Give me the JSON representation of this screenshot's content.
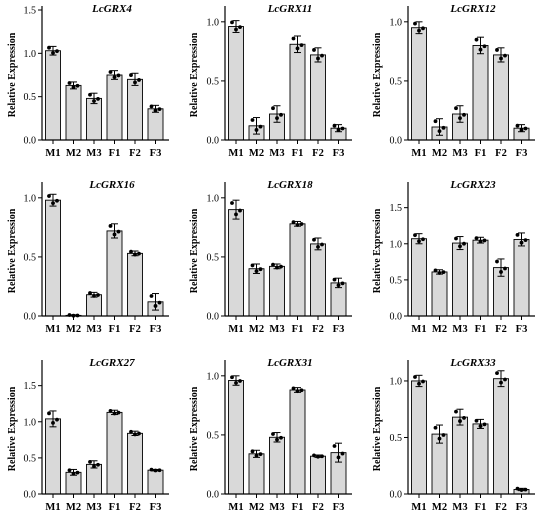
{
  "figure": {
    "ylabel": "Relative Expression",
    "categories": [
      "M1",
      "M2",
      "M3",
      "F1",
      "F2",
      "F3"
    ],
    "bar_color": "#d9d9d9",
    "edge_color": "#000000",
    "point_color": "#000000"
  },
  "chart_data": [
    {
      "type": "bar",
      "title": "LcGRX4",
      "categories": [
        "M1",
        "M2",
        "M3",
        "F1",
        "F2",
        "F3"
      ],
      "values": [
        1.03,
        0.63,
        0.48,
        0.75,
        0.7,
        0.36
      ],
      "errors": [
        0.05,
        0.04,
        0.06,
        0.05,
        0.07,
        0.04
      ],
      "ylim": [
        0,
        1.5
      ],
      "yticks": [
        0,
        0.5,
        1.0,
        1.5
      ],
      "ytick_labels": [
        "0.0",
        "0.5",
        "1.0",
        "1.5"
      ],
      "ylabel": "Relative Expression"
    },
    {
      "type": "bar",
      "title": "LcGRX11",
      "categories": [
        "M1",
        "M2",
        "M3",
        "F1",
        "F2",
        "F3"
      ],
      "values": [
        0.96,
        0.12,
        0.22,
        0.81,
        0.72,
        0.1
      ],
      "errors": [
        0.05,
        0.07,
        0.07,
        0.07,
        0.06,
        0.03
      ],
      "ylim": [
        0,
        1.1
      ],
      "yticks": [
        0,
        0.5,
        1.0
      ],
      "ytick_labels": [
        "0.0",
        "0.5",
        "1.0"
      ],
      "ylabel": "Relative Expression"
    },
    {
      "type": "bar",
      "title": "LcGRX12",
      "categories": [
        "M1",
        "M2",
        "M3",
        "F1",
        "F2",
        "F3"
      ],
      "values": [
        0.95,
        0.11,
        0.22,
        0.8,
        0.72,
        0.1
      ],
      "errors": [
        0.05,
        0.07,
        0.07,
        0.07,
        0.06,
        0.03
      ],
      "ylim": [
        0,
        1.1
      ],
      "yticks": [
        0,
        0.5,
        1.0
      ],
      "ytick_labels": [
        "0.0",
        "0.5",
        "1.0"
      ],
      "ylabel": "Relative Expression"
    },
    {
      "type": "bar",
      "title": "LcGRX16",
      "categories": [
        "M1",
        "M2",
        "M3",
        "F1",
        "F2",
        "F3"
      ],
      "values": [
        0.98,
        0.005,
        0.18,
        0.72,
        0.53,
        0.12
      ],
      "errors": [
        0.05,
        0.005,
        0.02,
        0.06,
        0.02,
        0.07
      ],
      "ylim": [
        0,
        1.1
      ],
      "yticks": [
        0,
        0.5,
        1.0
      ],
      "ytick_labels": [
        "0.0",
        "0.5",
        "1.0"
      ],
      "ylabel": "Relative Expression"
    },
    {
      "type": "bar",
      "title": "LcGRX18",
      "categories": [
        "M1",
        "M2",
        "M3",
        "F1",
        "F2",
        "F3"
      ],
      "values": [
        0.9,
        0.4,
        0.42,
        0.78,
        0.61,
        0.28
      ],
      "errors": [
        0.08,
        0.04,
        0.02,
        0.02,
        0.05,
        0.04
      ],
      "ylim": [
        0,
        1.1
      ],
      "yticks": [
        0,
        0.5,
        1.0
      ],
      "ytick_labels": [
        "0.0",
        "0.5",
        "1.0"
      ],
      "ylabel": "Relative Expression"
    },
    {
      "type": "bar",
      "title": "LcGRX23",
      "categories": [
        "M1",
        "M2",
        "M3",
        "F1",
        "F2",
        "F3"
      ],
      "values": [
        1.07,
        0.61,
        1.01,
        1.05,
        0.67,
        1.06
      ],
      "errors": [
        0.07,
        0.03,
        0.09,
        0.04,
        0.12,
        0.09
      ],
      "ylim": [
        0,
        1.8
      ],
      "yticks": [
        0,
        0.5,
        1.0,
        1.5
      ],
      "ytick_labels": [
        "0.0",
        "0.5",
        "1.0",
        "1.5"
      ],
      "ylabel": "Relative Expression"
    },
    {
      "type": "bar",
      "title": "LcGRX27",
      "categories": [
        "M1",
        "M2",
        "M3",
        "F1",
        "F2",
        "F3"
      ],
      "values": [
        1.04,
        0.3,
        0.41,
        1.13,
        0.84,
        0.33
      ],
      "errors": [
        0.11,
        0.04,
        0.05,
        0.03,
        0.03,
        0.01
      ],
      "ylim": [
        0,
        1.8
      ],
      "yticks": [
        0,
        0.5,
        1.0,
        1.5
      ],
      "ytick_labels": [
        "0.0",
        "0.5",
        "1.0",
        "1.5"
      ],
      "ylabel": "Relative Expression"
    },
    {
      "type": "bar",
      "title": "LcGRX31",
      "categories": [
        "M1",
        "M2",
        "M3",
        "F1",
        "F2",
        "F3"
      ],
      "values": [
        0.96,
        0.34,
        0.48,
        0.88,
        0.32,
        0.35
      ],
      "errors": [
        0.04,
        0.03,
        0.04,
        0.02,
        0.01,
        0.08
      ],
      "ylim": [
        0,
        1.1
      ],
      "yticks": [
        0,
        0.5,
        1.0
      ],
      "ytick_labels": [
        "0.0",
        "0.5",
        "1.0"
      ],
      "ylabel": "Relative Expression"
    },
    {
      "type": "bar",
      "title": "LcGRX33",
      "categories": [
        "M1",
        "M2",
        "M3",
        "F1",
        "F2",
        "F3"
      ],
      "values": [
        1.0,
        0.53,
        0.68,
        0.62,
        1.02,
        0.04
      ],
      "errors": [
        0.05,
        0.08,
        0.07,
        0.04,
        0.07,
        0.01
      ],
      "ylim": [
        0,
        1.15
      ],
      "yticks": [
        0,
        0.5,
        1.0
      ],
      "ytick_labels": [
        "0.0",
        "0.5",
        "1.0"
      ],
      "ylabel": "Relative Expression"
    }
  ]
}
